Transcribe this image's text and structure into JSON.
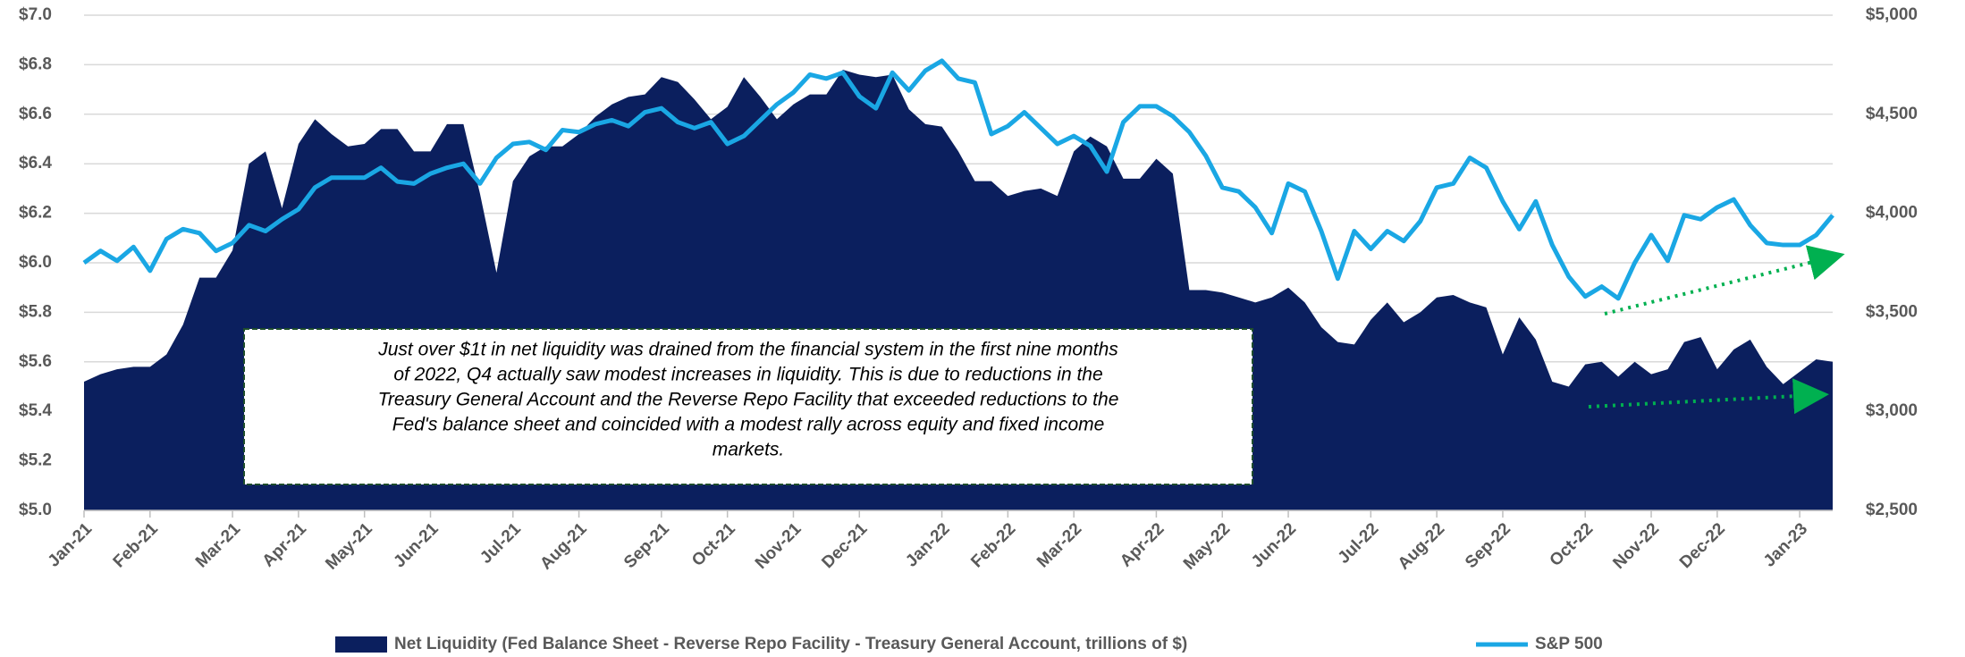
{
  "chart_data": {
    "type": "area-line",
    "categories": [
      "Jan-21",
      null,
      null,
      null,
      "Feb-21",
      null,
      null,
      null,
      null,
      "Mar-21",
      null,
      null,
      null,
      "Apr-21",
      null,
      null,
      null,
      "May-21",
      null,
      null,
      null,
      "Jun-21",
      null,
      null,
      null,
      null,
      "Jul-21",
      null,
      null,
      null,
      "Aug-21",
      null,
      null,
      null,
      null,
      "Sep-21",
      null,
      null,
      null,
      "Oct-21",
      null,
      null,
      null,
      "Nov-21",
      null,
      null,
      null,
      "Dec-21",
      null,
      null,
      null,
      null,
      "Jan-22",
      null,
      null,
      null,
      "Feb-22",
      null,
      null,
      null,
      "Mar-22",
      null,
      null,
      null,
      null,
      "Apr-22",
      null,
      null,
      null,
      "May-22",
      null,
      null,
      null,
      "Jun-22",
      null,
      null,
      null,
      null,
      "Jul-22",
      null,
      null,
      null,
      "Aug-22",
      null,
      null,
      null,
      "Sep-22",
      null,
      null,
      null,
      null,
      "Oct-22",
      null,
      null,
      null,
      "Nov-22",
      null,
      null,
      null,
      "Dec-22",
      null,
      null,
      null,
      null,
      "Jan-23",
      null,
      null
    ],
    "series": [
      {
        "name": "Net Liquidity (Fed Balance Sheet - Reverse Repo Facility - Treasury General Account, trillions of $)",
        "color": "#0b1f5e",
        "kind": "area",
        "values": [
          5.52,
          5.55,
          5.57,
          5.58,
          5.58,
          5.63,
          5.75,
          5.94,
          5.94,
          6.05,
          6.4,
          6.45,
          6.22,
          6.48,
          6.58,
          6.52,
          6.47,
          6.48,
          6.54,
          6.54,
          6.45,
          6.45,
          6.56,
          6.56,
          6.28,
          5.96,
          6.33,
          6.43,
          6.47,
          6.47,
          6.52,
          6.59,
          6.64,
          6.67,
          6.68,
          6.75,
          6.73,
          6.66,
          6.58,
          6.63,
          6.75,
          6.67,
          6.58,
          6.64,
          6.68,
          6.68,
          6.78,
          6.76,
          6.75,
          6.76,
          6.62,
          6.56,
          6.55,
          6.45,
          6.33,
          6.33,
          6.27,
          6.29,
          6.3,
          6.27,
          6.45,
          6.51,
          6.47,
          6.34,
          6.34,
          6.42,
          6.36,
          5.89,
          5.89,
          5.88,
          5.86,
          5.84,
          5.86,
          5.9,
          5.84,
          5.74,
          5.68,
          5.67,
          5.77,
          5.84,
          5.76,
          5.8,
          5.86,
          5.87,
          5.84,
          5.82,
          5.63,
          5.78,
          5.69,
          5.52,
          5.5,
          5.59,
          5.6,
          5.54,
          5.6,
          5.55,
          5.57,
          5.68,
          5.7,
          5.57,
          5.65,
          5.69,
          5.58,
          5.51,
          5.56,
          5.61,
          5.6
        ]
      },
      {
        "name": "S&P 500",
        "color": "#1aa7e4",
        "kind": "line",
        "axis": "y2",
        "values": [
          3750,
          3810,
          3760,
          3830,
          3710,
          3870,
          3920,
          3900,
          3810,
          3850,
          3940,
          3910,
          3970,
          4020,
          4130,
          4180,
          4180,
          4180,
          4230,
          4160,
          4150,
          4200,
          4230,
          4250,
          4150,
          4280,
          4350,
          4360,
          4320,
          4420,
          4410,
          4450,
          4470,
          4440,
          4510,
          4530,
          4460,
          4430,
          4460,
          4350,
          4390,
          4470,
          4550,
          4610,
          4700,
          4680,
          4710,
          4590,
          4530,
          4710,
          4620,
          4720,
          4770,
          4680,
          4660,
          4400,
          4440,
          4510,
          4430,
          4350,
          4390,
          4340,
          4210,
          4460,
          4540,
          4540,
          4490,
          4410,
          4290,
          4130,
          4110,
          4030,
          3900,
          4150,
          4110,
          3910,
          3670,
          3910,
          3820,
          3910,
          3860,
          3960,
          4130,
          4150,
          4280,
          4230,
          4060,
          3920,
          4060,
          3840,
          3680,
          3580,
          3630,
          3570,
          3750,
          3890,
          3760,
          3990,
          3970,
          4030,
          4070,
          3940,
          3850,
          3840,
          3840,
          3890,
          3990
        ]
      }
    ],
    "ylim": [
      5.0,
      7.0
    ],
    "yticks": [
      {
        "value": 5.0,
        "label": "$5.0"
      },
      {
        "value": 5.2,
        "label": "$5.2"
      },
      {
        "value": 5.4,
        "label": "$5.4"
      },
      {
        "value": 5.6,
        "label": "$5.6"
      },
      {
        "value": 5.8,
        "label": "$5.8"
      },
      {
        "value": 6.0,
        "label": "$6.0"
      },
      {
        "value": 6.2,
        "label": "$6.2"
      },
      {
        "value": 6.4,
        "label": "$6.4"
      },
      {
        "value": 6.6,
        "label": "$6.6"
      },
      {
        "value": 6.8,
        "label": "$6.8"
      },
      {
        "value": 7.0,
        "label": "$7.0"
      }
    ],
    "y2lim": [
      2500,
      5000
    ],
    "y2ticks": [
      {
        "value": 2500,
        "label": "$2,500"
      },
      {
        "value": 3000,
        "label": "$3,000"
      },
      {
        "value": 3500,
        "label": "$3,500"
      },
      {
        "value": 4000,
        "label": "$4,000"
      },
      {
        "value": 4500,
        "label": "$4,500"
      },
      {
        "value": 5000,
        "label": "$5,000"
      }
    ],
    "grid": true,
    "legend": "bottom",
    "annotation": [
      "Just over $1t in net liquidity was drained from the financial system in the first nine months",
      "of 2022, Q4 actually saw modest increases in liquidity. This is due to reductions in the",
      "Treasury General Account and the Reverse Repo Facility that exceeded reductions to the",
      "Fed's balance sheet and coincided with a modest rally across equity and fixed income",
      "markets."
    ]
  }
}
